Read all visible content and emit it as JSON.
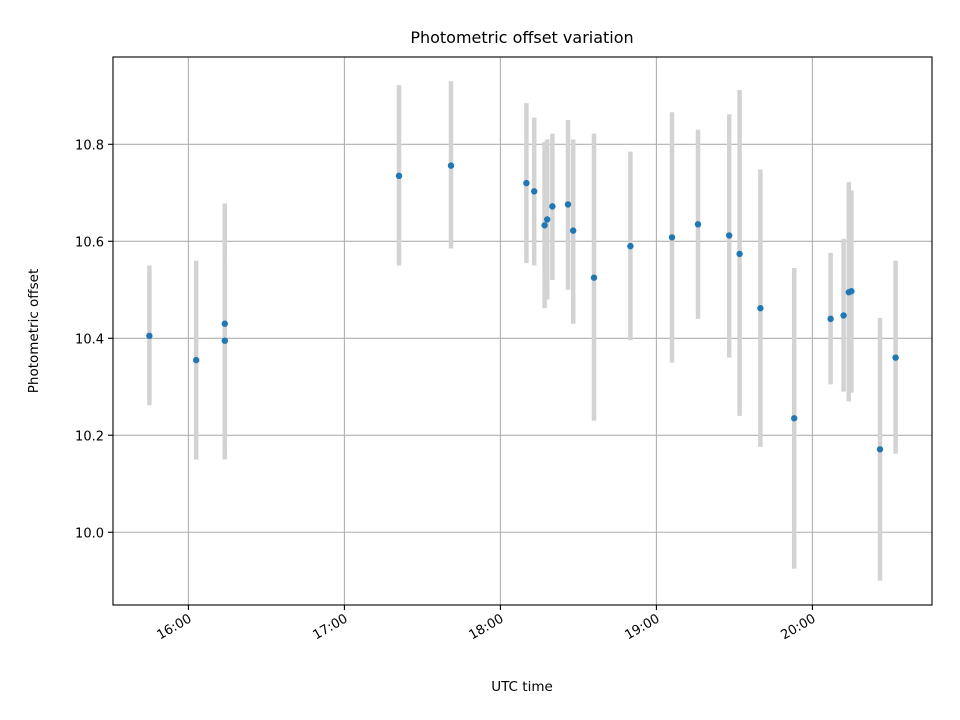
{
  "chart_data": {
    "type": "scatter",
    "title": "Photometric offset variation",
    "xlabel": "UTC time",
    "ylabel": "Photometric offset",
    "x_ticks": [
      "16:00",
      "17:00",
      "18:00",
      "19:00",
      "20:00"
    ],
    "y_ticks": [
      "10.0",
      "10.2",
      "10.4",
      "10.6",
      "10.8"
    ],
    "xlim": [
      "15:31",
      "20:46"
    ],
    "ylim": [
      9.85,
      10.98
    ],
    "grid": true,
    "colors": {
      "point": "#1f77b4",
      "errorbar": "#d3d3d3",
      "grid": "#b0b0b0"
    },
    "points": [
      {
        "time": "15:45",
        "y": 10.405,
        "ylo": 10.262,
        "yhi": 10.55
      },
      {
        "time": "16:03",
        "y": 10.355,
        "ylo": 10.15,
        "yhi": 10.56
      },
      {
        "time": "16:14",
        "y": 10.395,
        "ylo": 10.15,
        "yhi": 10.56
      },
      {
        "time": "16:14",
        "y": 10.43,
        "ylo": 10.18,
        "yhi": 10.678
      },
      {
        "time": "17:21",
        "y": 10.735,
        "ylo": 10.55,
        "yhi": 10.922
      },
      {
        "time": "17:41",
        "y": 10.756,
        "ylo": 10.585,
        "yhi": 10.93
      },
      {
        "time": "18:10",
        "y": 10.72,
        "ylo": 10.555,
        "yhi": 10.885
      },
      {
        "time": "18:13",
        "y": 10.703,
        "ylo": 10.55,
        "yhi": 10.855
      },
      {
        "time": "18:17",
        "y": 10.633,
        "ylo": 10.462,
        "yhi": 10.805
      },
      {
        "time": "18:18",
        "y": 10.645,
        "ylo": 10.48,
        "yhi": 10.81
      },
      {
        "time": "18:20",
        "y": 10.672,
        "ylo": 10.52,
        "yhi": 10.822
      },
      {
        "time": "18:26",
        "y": 10.676,
        "ylo": 10.5,
        "yhi": 10.85
      },
      {
        "time": "18:28",
        "y": 10.622,
        "ylo": 10.43,
        "yhi": 10.81
      },
      {
        "time": "18:36",
        "y": 10.525,
        "ylo": 10.23,
        "yhi": 10.822
      },
      {
        "time": "18:50",
        "y": 10.59,
        "ylo": 10.396,
        "yhi": 10.785
      },
      {
        "time": "19:06",
        "y": 10.608,
        "ylo": 10.35,
        "yhi": 10.866
      },
      {
        "time": "19:16",
        "y": 10.635,
        "ylo": 10.44,
        "yhi": 10.83
      },
      {
        "time": "19:28",
        "y": 10.612,
        "ylo": 10.36,
        "yhi": 10.862
      },
      {
        "time": "19:32",
        "y": 10.574,
        "ylo": 10.24,
        "yhi": 10.912
      },
      {
        "time": "19:40",
        "y": 10.462,
        "ylo": 10.176,
        "yhi": 10.748
      },
      {
        "time": "19:53",
        "y": 10.235,
        "ylo": 9.925,
        "yhi": 10.545
      },
      {
        "time": "20:07",
        "y": 10.44,
        "ylo": 10.305,
        "yhi": 10.576
      },
      {
        "time": "20:12",
        "y": 10.447,
        "ylo": 10.29,
        "yhi": 10.605
      },
      {
        "time": "20:14",
        "y": 10.495,
        "ylo": 10.27,
        "yhi": 10.722
      },
      {
        "time": "20:15",
        "y": 10.497,
        "ylo": 10.288,
        "yhi": 10.705
      },
      {
        "time": "20:26",
        "y": 10.171,
        "ylo": 9.9,
        "yhi": 10.442
      },
      {
        "time": "20:32",
        "y": 10.36,
        "ylo": 10.162,
        "yhi": 10.56
      }
    ]
  }
}
